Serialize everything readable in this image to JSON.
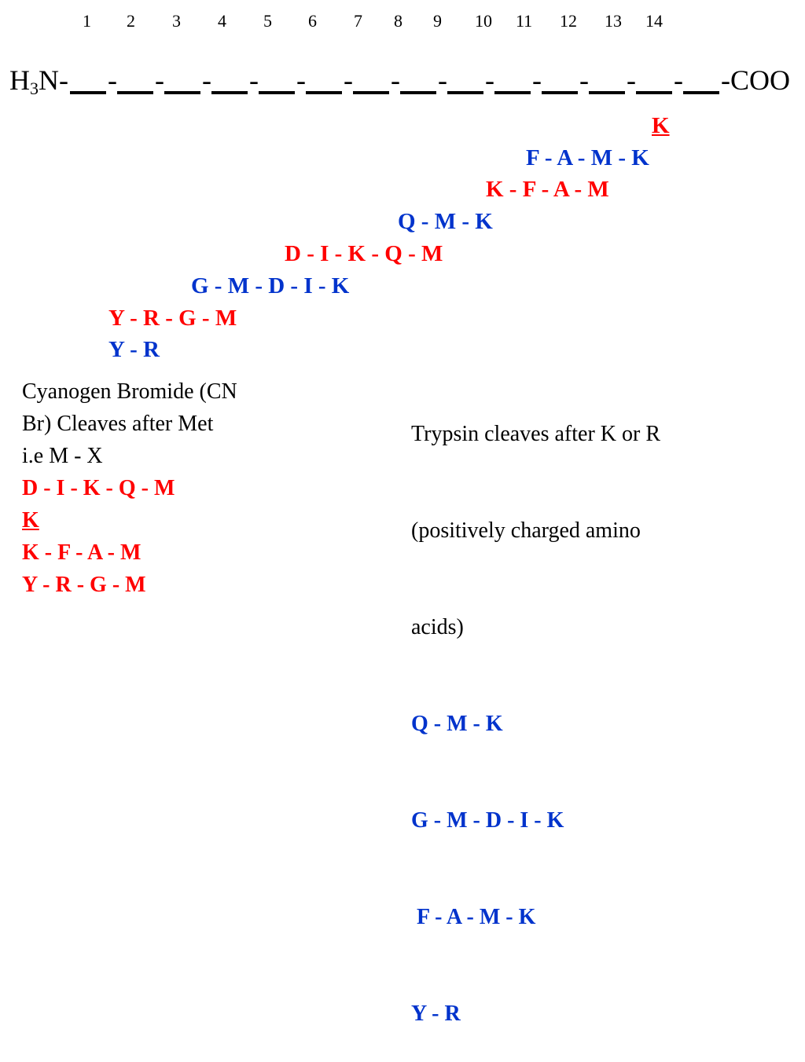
{
  "positions": [
    "1",
    "2",
    "3",
    "4",
    "5",
    "6",
    "7",
    "8",
    "9",
    "10",
    "11",
    "12",
    "13",
    "14"
  ],
  "chain": {
    "n_term_prefix": "H",
    "n_term_sub": "3",
    "n_term_suffix": "N-",
    "separator": "-",
    "c_term": "-COO",
    "blank_count": 14
  },
  "fragments": [
    {
      "text": "K",
      "color": "red",
      "underline": true
    },
    {
      "text": "F - A - M - K",
      "color": "blue"
    },
    {
      "text": "K - F - A - M",
      "color": "red"
    },
    {
      "text": "Q - M - K",
      "color": "blue"
    },
    {
      "text": "D - I - K - Q - M",
      "color": "red"
    },
    {
      "text": "G - M - D - I - K",
      "color": "blue"
    },
    {
      "text": "Y - R - G - M",
      "color": "red"
    },
    {
      "text": "Y - R",
      "color": "blue"
    }
  ],
  "cnbr_box": {
    "lines": [
      {
        "text": "Cyanogen Bromide (CN",
        "color": "black"
      },
      {
        "text": "Br)    Cleaves after Met",
        "color": "black"
      },
      {
        "text": "i.e  M - X",
        "color": "black"
      },
      {
        "text": "D - I - K - Q - M",
        "color": "red"
      },
      {
        "text": "K",
        "color": "red",
        "underline": true
      },
      {
        "text": "K - F - A - M",
        "color": "red"
      },
      {
        "text": "Y - R - G - M",
        "color": "red"
      }
    ]
  },
  "trypsin_box": {
    "lines": [
      {
        "text": "Trypsin  cleaves after K or R",
        "color": "black"
      },
      {
        "text": "(positively charged amino",
        "color": "black"
      },
      {
        "text": "acids)",
        "color": "black"
      },
      {
        "text": "Q - M - K",
        "color": "blue"
      },
      {
        "text": "G - M - D - I - K",
        "color": "blue"
      },
      {
        "text": " F - A - M - K",
        "color": "blue"
      },
      {
        "text": "Y - R",
        "color": "blue"
      }
    ]
  },
  "colors": {
    "red": "#ff0000",
    "blue": "#0033cc",
    "black": "#000000"
  }
}
